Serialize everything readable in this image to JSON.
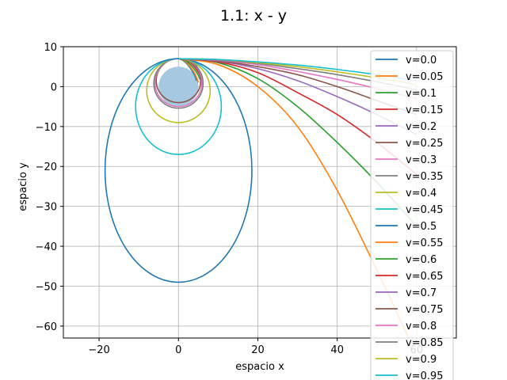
{
  "chart_data": {
    "type": "line",
    "title": "1.1: x - y",
    "xlabel": "espacio x",
    "ylabel": "espacio y",
    "xlim": [
      -29,
      70
    ],
    "ylim": [
      -63,
      10
    ],
    "xticks": [
      -20,
      0,
      20,
      40,
      60
    ],
    "yticks": [
      10,
      0,
      -10,
      -20,
      -30,
      -40,
      -50,
      -60
    ],
    "xtick_labels": [
      "−20",
      "0",
      "20",
      "40",
      "60"
    ],
    "ytick_labels": [
      "10",
      "0",
      "−10",
      "−20",
      "−30",
      "−40",
      "−50",
      "−60"
    ],
    "grid": true,
    "legend_position": "top-right",
    "planet": {
      "x": 0,
      "y": 0,
      "radius": 5,
      "color": "#a6c8e0"
    },
    "start_point": {
      "x": 0,
      "y": 7
    },
    "series": [
      {
        "name": "v=0.0",
        "v": 0.0,
        "color": "#1f77b4"
      },
      {
        "name": "v=0.05",
        "v": 0.05,
        "color": "#ff7f0e"
      },
      {
        "name": "v=0.1",
        "v": 0.1,
        "color": "#2ca02c"
      },
      {
        "name": "v=0.15",
        "v": 0.15,
        "color": "#d62728"
      },
      {
        "name": "v=0.2",
        "v": 0.2,
        "color": "#9467bd"
      },
      {
        "name": "v=0.25",
        "v": 0.25,
        "color": "#8c564b"
      },
      {
        "name": "v=0.3",
        "v": 0.3,
        "color": "#e377c2"
      },
      {
        "name": "v=0.35",
        "v": 0.35,
        "color": "#7f7f7f"
      },
      {
        "name": "v=0.4",
        "v": 0.4,
        "color": "#bcbd22"
      },
      {
        "name": "v=0.45",
        "v": 0.45,
        "color": "#17becf"
      },
      {
        "name": "v=0.5",
        "v": 0.5,
        "color": "#1f77b4",
        "shape": "ellipse",
        "center": [
          0,
          -21
        ],
        "rx": 18.5,
        "ry": 28
      },
      {
        "name": "v=0.55",
        "v": 0.55,
        "color": "#ff7f0e",
        "shape": "curve",
        "points": [
          [
            0,
            7
          ],
          [
            10,
            5.5
          ],
          [
            20,
            0
          ],
          [
            30,
            -10
          ],
          [
            40,
            -26
          ],
          [
            50,
            -46
          ],
          [
            58,
            -63
          ]
        ]
      },
      {
        "name": "v=0.6",
        "v": 0.6,
        "color": "#2ca02c",
        "shape": "curve",
        "points": [
          [
            0,
            7
          ],
          [
            10,
            6
          ],
          [
            20,
            2
          ],
          [
            30,
            -5
          ],
          [
            40,
            -14
          ],
          [
            50,
            -24
          ],
          [
            60,
            -35
          ]
        ]
      },
      {
        "name": "v=0.65",
        "v": 0.65,
        "color": "#d62728",
        "shape": "curve",
        "points": [
          [
            0,
            7
          ],
          [
            10,
            6.2
          ],
          [
            20,
            3.5
          ],
          [
            30,
            -1.5
          ],
          [
            40,
            -7
          ],
          [
            50,
            -14
          ],
          [
            60,
            -22
          ]
        ]
      },
      {
        "name": "v=0.7",
        "v": 0.7,
        "color": "#9467bd",
        "shape": "curve",
        "points": [
          [
            0,
            7
          ],
          [
            10,
            6.4
          ],
          [
            20,
            4.5
          ],
          [
            30,
            1.5
          ],
          [
            40,
            -2.5
          ],
          [
            50,
            -7
          ],
          [
            60,
            -12
          ]
        ]
      },
      {
        "name": "v=0.75",
        "v": 0.75,
        "color": "#8c564b",
        "shape": "curve",
        "points": [
          [
            0,
            7
          ],
          [
            10,
            6.5
          ],
          [
            20,
            5
          ],
          [
            30,
            3
          ],
          [
            40,
            0
          ],
          [
            50,
            -3.5
          ],
          [
            60,
            -7
          ]
        ]
      },
      {
        "name": "v=0.8",
        "v": 0.8,
        "color": "#e377c2",
        "shape": "curve",
        "points": [
          [
            0,
            7
          ],
          [
            10,
            6.6
          ],
          [
            20,
            5.5
          ],
          [
            30,
            3.8
          ],
          [
            40,
            1.8
          ],
          [
            50,
            -0.5
          ],
          [
            60,
            -3
          ]
        ]
      },
      {
        "name": "v=0.85",
        "v": 0.85,
        "color": "#7f7f7f",
        "shape": "curve",
        "points": [
          [
            0,
            7
          ],
          [
            10,
            6.7
          ],
          [
            20,
            5.8
          ],
          [
            30,
            4.5
          ],
          [
            40,
            3
          ],
          [
            50,
            1.2
          ],
          [
            60,
            -0.8
          ]
        ]
      },
      {
        "name": "v=0.9",
        "v": 0.9,
        "color": "#bcbd22",
        "shape": "curve",
        "points": [
          [
            0,
            7
          ],
          [
            10,
            6.8
          ],
          [
            20,
            6
          ],
          [
            30,
            5
          ],
          [
            40,
            3.7
          ],
          [
            50,
            2.2
          ],
          [
            60,
            0.5
          ]
        ]
      },
      {
        "name": "v=0.95",
        "v": 0.95,
        "color": "#17becf",
        "shape": "curve",
        "points": [
          [
            0,
            7
          ],
          [
            10,
            6.8
          ],
          [
            20,
            6.2
          ],
          [
            30,
            5.4
          ],
          [
            40,
            4.3
          ],
          [
            50,
            3
          ],
          [
            60,
            1.5
          ]
        ]
      }
    ],
    "small_orbits": [
      {
        "series": 0,
        "points": [
          [
            0,
            7
          ],
          [
            1.2,
            6.5
          ],
          [
            2.4,
            5.4
          ],
          [
            3.4,
            4
          ],
          [
            4.2,
            2.6
          ],
          [
            4.5,
            1.5
          ]
        ]
      },
      {
        "series": 1,
        "points": [
          [
            0,
            7
          ],
          [
            1.5,
            6.5
          ],
          [
            2.7,
            5.3
          ],
          [
            3.8,
            3.8
          ],
          [
            4.6,
            2.2
          ],
          [
            5,
            1
          ]
        ]
      },
      {
        "series": 2,
        "points": [
          [
            0,
            7
          ],
          [
            1.7,
            6.6
          ],
          [
            3,
            5.5
          ],
          [
            4.1,
            4.2
          ],
          [
            5,
            2.8
          ],
          [
            5.4,
            1.8
          ]
        ]
      },
      {
        "series": 3,
        "points": [
          [
            0,
            7
          ],
          [
            1.9,
            6.7
          ],
          [
            3.2,
            5.8
          ],
          [
            4.3,
            4.6
          ],
          [
            5.1,
            3.4
          ],
          [
            5.5,
            2.6
          ]
        ]
      },
      {
        "series": 4,
        "points": [
          [
            0,
            7
          ],
          [
            2.1,
            6.8
          ],
          [
            3.5,
            6.1
          ],
          [
            4.6,
            5.1
          ],
          [
            5.2,
            4.1
          ]
        ]
      },
      {
        "series": 5,
        "center": [
          0,
          1.5
        ],
        "rx": 5.6,
        "ry": 5.5
      },
      {
        "series": 6,
        "center": [
          0,
          1.0
        ],
        "rx": 5.9,
        "ry": 6.0
      },
      {
        "series": 7,
        "center": [
          0,
          0.8
        ],
        "rx": 6.2,
        "ry": 6.2
      },
      {
        "series": 8,
        "center": [
          0,
          -1.0
        ],
        "rx": 8.0,
        "ry": 8.0
      },
      {
        "series": 9,
        "center": [
          0,
          -5.0
        ],
        "rx": 10.8,
        "ry": 12.0
      }
    ]
  }
}
